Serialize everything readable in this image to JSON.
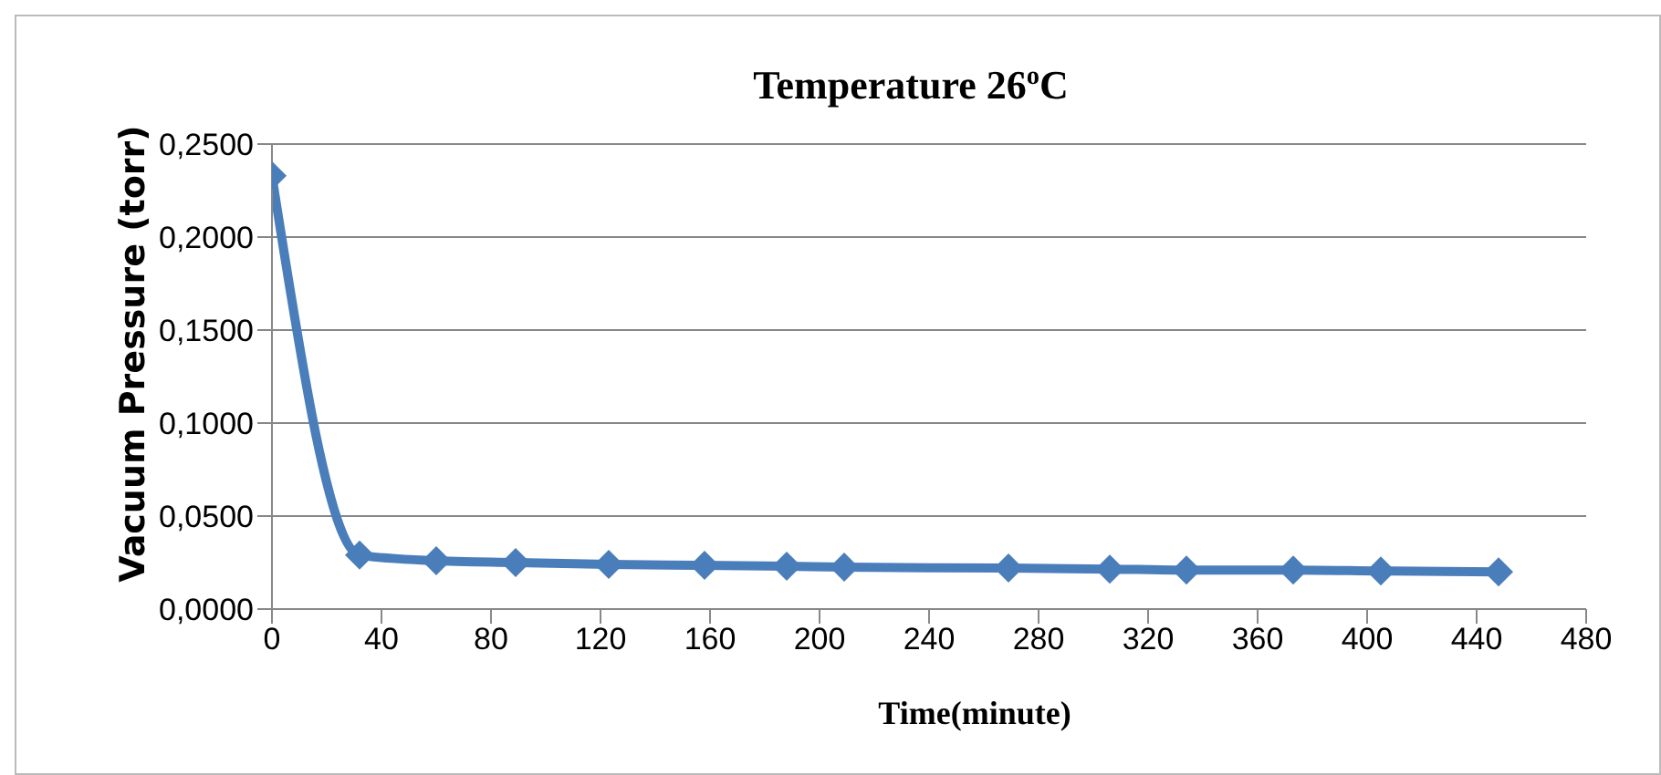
{
  "chart_data": {
    "type": "line",
    "title": "Temperature 26$^{o}$C",
    "xlabel": "Time(minute)",
    "ylabel": "Vacuum Pressure (torr)",
    "x": [
      0,
      32,
      60,
      89,
      123,
      158,
      188,
      209,
      269,
      306,
      334,
      373,
      405,
      448
    ],
    "series": [
      {
        "color": "#4a7ebb",
        "values": [
          0.233,
          0.029,
          0.026,
          0.025,
          0.024,
          0.0235,
          0.023,
          0.0225,
          0.022,
          0.0215,
          0.021,
          0.021,
          0.0205,
          0.02
        ]
      }
    ],
    "xlim": [
      0,
      480
    ],
    "xticks": [
      0,
      40,
      80,
      120,
      160,
      200,
      240,
      280,
      320,
      360,
      400,
      440,
      480
    ],
    "ylim": [
      0,
      0.25
    ],
    "yticks": [
      {
        "value": 0,
        "label": "0,0000"
      },
      {
        "value": 0.05,
        "label": "0,0500"
      },
      {
        "value": 0.1,
        "label": "0,1000"
      },
      {
        "value": 0.15,
        "label": "0,1500"
      },
      {
        "value": 0.2,
        "label": "0,2000"
      },
      {
        "value": 0.25,
        "label": "0,2500"
      }
    ],
    "grid": "y",
    "marker": "diamond",
    "legend": false
  }
}
